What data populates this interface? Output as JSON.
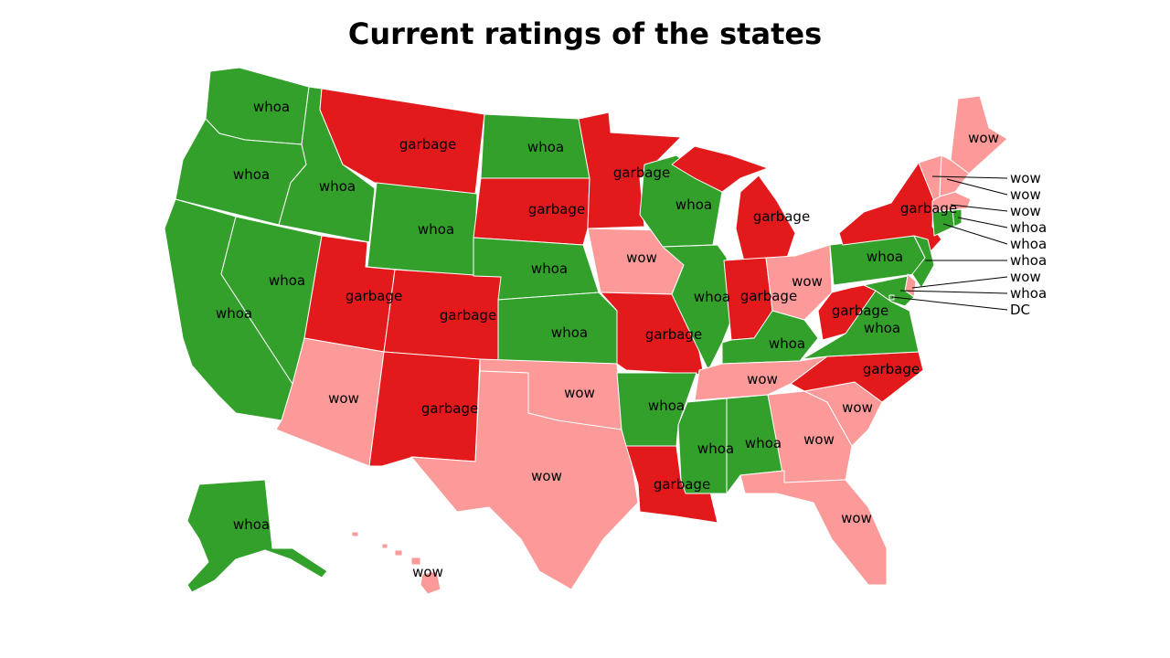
{
  "title": "Current ratings of the states",
  "legend": {
    "whoa": "#33a02c",
    "garbage": "#e31a1c",
    "wow": "#fb9a99"
  },
  "states": {
    "washington": "whoa",
    "oregon": "whoa",
    "california": "whoa",
    "idaho": "whoa",
    "nevada": "whoa",
    "montana": "garbage",
    "wyoming": "whoa",
    "utah": "garbage",
    "arizona": "wow",
    "colorado": "garbage",
    "new_mexico": "garbage",
    "north_dakota": "whoa",
    "south_dakota": "garbage",
    "nebraska": "whoa",
    "kansas": "whoa",
    "oklahoma": "wow",
    "texas": "wow",
    "minnesota": "garbage",
    "iowa": "wow",
    "missouri": "garbage",
    "arkansas": "whoa",
    "louisiana": "garbage",
    "wisconsin": "whoa",
    "illinois": "whoa",
    "michigan": "garbage",
    "indiana": "garbage",
    "ohio": "wow",
    "kentucky": "whoa",
    "tennessee": "wow",
    "mississippi": "whoa",
    "alabama": "whoa",
    "georgia": "wow",
    "florida": "wow",
    "south_carolina": "wow",
    "north_carolina": "garbage",
    "virginia": "whoa",
    "west_virginia": "garbage",
    "pennsylvania": "whoa",
    "new_york": "garbage",
    "maine": "wow",
    "alaska": "whoa",
    "hawaii": "wow",
    "vermont": "wow",
    "new_hampshire": "wow",
    "massachusetts": "wow",
    "rhode_island": "whoa",
    "connecticut": "whoa",
    "new_jersey": "whoa",
    "delaware": "wow",
    "maryland": "whoa",
    "dc": "DC"
  }
}
